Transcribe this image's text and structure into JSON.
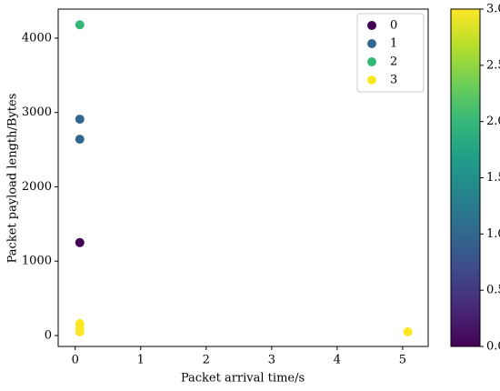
{
  "chart_data": {
    "type": "scatter",
    "x_label": "Packet arrival time/s",
    "y_label": "Packet payload length/Bytes",
    "series": [
      {
        "name": "0",
        "color": "#440154",
        "x": [
          0.07
        ],
        "values": [
          1250
        ]
      },
      {
        "name": "1",
        "color": "#31688e",
        "x": [
          0.07,
          0.07
        ],
        "values": [
          2910,
          2640
        ]
      },
      {
        "name": "2",
        "color": "#35b779",
        "x": [
          0.07
        ],
        "values": [
          4180
        ]
      },
      {
        "name": "3",
        "color": "#fde725",
        "x": [
          0.07,
          0.07,
          0.07,
          5.08
        ],
        "values": [
          160,
          100,
          50,
          50
        ]
      }
    ],
    "xlim": [
      -0.26,
      5.39
    ],
    "xticks": [
      0,
      1,
      2,
      3,
      4,
      5
    ],
    "ylim": [
      -147,
      4391
    ],
    "yticks": [
      0,
      1000,
      2000,
      3000,
      4000
    ],
    "legend": "upper right",
    "colorbar": {
      "lim": [
        0,
        3
      ],
      "ticks": [
        {
          "value": 0,
          "label": "0.0"
        },
        0.5,
        {
          "value": 1,
          "label": "1.0"
        },
        1.5,
        {
          "value": 2,
          "label": "2.0"
        },
        2.5,
        {
          "value": 3,
          "label": "3.0"
        }
      ],
      "colors": [
        "#440154",
        "#482878",
        "#3e4989",
        "#31688e",
        "#26828e",
        "#1f9e89",
        "#35b779",
        "#6ece58",
        "#b5de2b",
        "#fde725"
      ]
    }
  }
}
